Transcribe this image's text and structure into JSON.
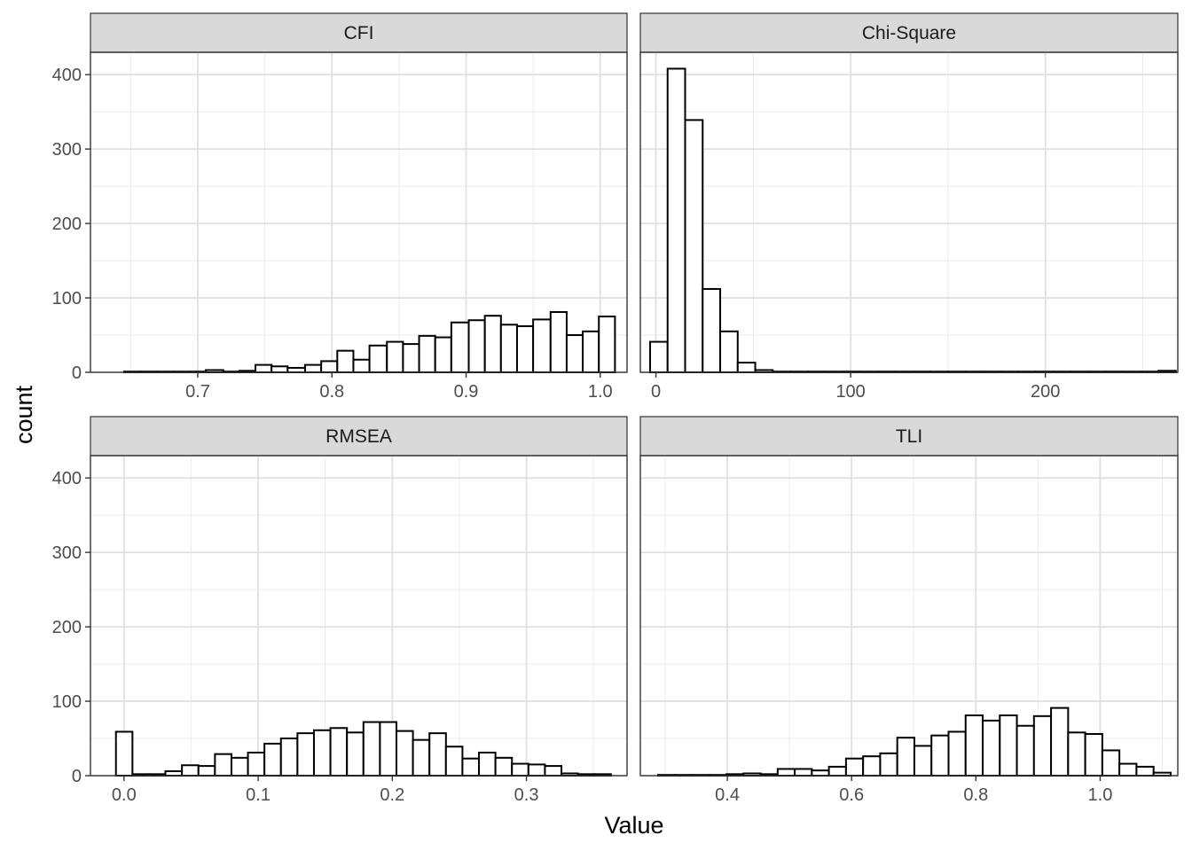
{
  "chart_data": {
    "type": "histogram-facets",
    "xlabel": "Value",
    "ylabel": "count",
    "ylim": [
      0,
      430
    ],
    "yticks": [
      0,
      100,
      200,
      300,
      400
    ],
    "panels": [
      {
        "title": "CFI",
        "xlim": [
          0.62,
          1.02
        ],
        "xticks": [
          0.7,
          0.8,
          0.9,
          1.0
        ],
        "xtick_labels": [
          "0.7",
          "0.8",
          "0.9",
          "1.0"
        ],
        "bins": [
          {
            "start": 0.645,
            "end": 0.657,
            "count": 1
          },
          {
            "start": 0.657,
            "end": 0.67,
            "count": 1
          },
          {
            "start": 0.67,
            "end": 0.682,
            "count": 1
          },
          {
            "start": 0.682,
            "end": 0.694,
            "count": 1
          },
          {
            "start": 0.694,
            "end": 0.706,
            "count": 1
          },
          {
            "start": 0.706,
            "end": 0.719,
            "count": 3
          },
          {
            "start": 0.719,
            "end": 0.731,
            "count": 1
          },
          {
            "start": 0.731,
            "end": 0.743,
            "count": 2
          },
          {
            "start": 0.743,
            "end": 0.755,
            "count": 10
          },
          {
            "start": 0.755,
            "end": 0.767,
            "count": 8
          },
          {
            "start": 0.767,
            "end": 0.78,
            "count": 6
          },
          {
            "start": 0.78,
            "end": 0.792,
            "count": 10
          },
          {
            "start": 0.792,
            "end": 0.804,
            "count": 15
          },
          {
            "start": 0.804,
            "end": 0.816,
            "count": 29
          },
          {
            "start": 0.816,
            "end": 0.828,
            "count": 17
          },
          {
            "start": 0.828,
            "end": 0.841,
            "count": 36
          },
          {
            "start": 0.841,
            "end": 0.853,
            "count": 41
          },
          {
            "start": 0.853,
            "end": 0.865,
            "count": 38
          },
          {
            "start": 0.865,
            "end": 0.877,
            "count": 49
          },
          {
            "start": 0.877,
            "end": 0.889,
            "count": 47
          },
          {
            "start": 0.889,
            "end": 0.902,
            "count": 67
          },
          {
            "start": 0.902,
            "end": 0.914,
            "count": 70
          },
          {
            "start": 0.914,
            "end": 0.926,
            "count": 76
          },
          {
            "start": 0.926,
            "end": 0.938,
            "count": 64
          },
          {
            "start": 0.938,
            "end": 0.95,
            "count": 62
          },
          {
            "start": 0.95,
            "end": 0.963,
            "count": 71
          },
          {
            "start": 0.963,
            "end": 0.975,
            "count": 81
          },
          {
            "start": 0.975,
            "end": 0.987,
            "count": 50
          },
          {
            "start": 0.987,
            "end": 0.999,
            "count": 55
          },
          {
            "start": 0.999,
            "end": 1.011,
            "count": 75
          }
        ]
      },
      {
        "title": "Chi-Square",
        "xlim": [
          -8,
          268
        ],
        "xticks": [
          0,
          100,
          200
        ],
        "xtick_labels": [
          "0",
          "100",
          "200"
        ],
        "bins": [
          {
            "start": -3,
            "end": 6,
            "count": 41
          },
          {
            "start": 6,
            "end": 15,
            "count": 408
          },
          {
            "start": 15,
            "end": 24,
            "count": 339
          },
          {
            "start": 24,
            "end": 33,
            "count": 112
          },
          {
            "start": 33,
            "end": 42,
            "count": 55
          },
          {
            "start": 42,
            "end": 51,
            "count": 13
          },
          {
            "start": 51,
            "end": 60,
            "count": 3
          },
          {
            "start": 60,
            "end": 69,
            "count": 1
          },
          {
            "start": 69,
            "end": 78,
            "count": 1
          },
          {
            "start": 78,
            "end": 87,
            "count": 1
          },
          {
            "start": 87,
            "end": 96,
            "count": 1
          },
          {
            "start": 96,
            "end": 105,
            "count": 1
          },
          {
            "start": 105,
            "end": 114,
            "count": 1
          },
          {
            "start": 114,
            "end": 123,
            "count": 1
          },
          {
            "start": 123,
            "end": 132,
            "count": 1
          },
          {
            "start": 132,
            "end": 141,
            "count": 1
          },
          {
            "start": 141,
            "end": 150,
            "count": 1
          },
          {
            "start": 150,
            "end": 159,
            "count": 1
          },
          {
            "start": 159,
            "end": 168,
            "count": 1
          },
          {
            "start": 168,
            "end": 177,
            "count": 1
          },
          {
            "start": 177,
            "end": 186,
            "count": 1
          },
          {
            "start": 186,
            "end": 195,
            "count": 1
          },
          {
            "start": 195,
            "end": 204,
            "count": 1
          },
          {
            "start": 204,
            "end": 213,
            "count": 1
          },
          {
            "start": 213,
            "end": 222,
            "count": 1
          },
          {
            "start": 222,
            "end": 231,
            "count": 1
          },
          {
            "start": 231,
            "end": 240,
            "count": 1
          },
          {
            "start": 240,
            "end": 249,
            "count": 1
          },
          {
            "start": 249,
            "end": 258,
            "count": 1
          },
          {
            "start": 258,
            "end": 267,
            "count": 2
          }
        ]
      },
      {
        "title": "RMSEA",
        "xlim": [
          -0.025,
          0.375
        ],
        "xticks": [
          0.0,
          0.1,
          0.2,
          0.3
        ],
        "xtick_labels": [
          "0.0",
          "0.1",
          "0.2",
          "0.3"
        ],
        "bins": [
          {
            "start": -0.006,
            "end": 0.0063,
            "count": 59
          },
          {
            "start": 0.0063,
            "end": 0.0186,
            "count": 2
          },
          {
            "start": 0.0186,
            "end": 0.0309,
            "count": 2
          },
          {
            "start": 0.0309,
            "end": 0.0432,
            "count": 6
          },
          {
            "start": 0.0432,
            "end": 0.0555,
            "count": 14
          },
          {
            "start": 0.0555,
            "end": 0.0678,
            "count": 13
          },
          {
            "start": 0.0678,
            "end": 0.0801,
            "count": 29
          },
          {
            "start": 0.0801,
            "end": 0.0924,
            "count": 24
          },
          {
            "start": 0.0924,
            "end": 0.1047,
            "count": 31
          },
          {
            "start": 0.1047,
            "end": 0.117,
            "count": 43
          },
          {
            "start": 0.117,
            "end": 0.1293,
            "count": 50
          },
          {
            "start": 0.1293,
            "end": 0.1416,
            "count": 57
          },
          {
            "start": 0.1416,
            "end": 0.1539,
            "count": 61
          },
          {
            "start": 0.1539,
            "end": 0.1662,
            "count": 64
          },
          {
            "start": 0.1662,
            "end": 0.1785,
            "count": 58
          },
          {
            "start": 0.1785,
            "end": 0.1908,
            "count": 72
          },
          {
            "start": 0.1908,
            "end": 0.2031,
            "count": 72
          },
          {
            "start": 0.2031,
            "end": 0.2154,
            "count": 60
          },
          {
            "start": 0.2154,
            "end": 0.2277,
            "count": 48
          },
          {
            "start": 0.2277,
            "end": 0.24,
            "count": 57
          },
          {
            "start": 0.24,
            "end": 0.2523,
            "count": 39
          },
          {
            "start": 0.2523,
            "end": 0.2646,
            "count": 23
          },
          {
            "start": 0.2646,
            "end": 0.2769,
            "count": 31
          },
          {
            "start": 0.2769,
            "end": 0.2892,
            "count": 24
          },
          {
            "start": 0.2892,
            "end": 0.3015,
            "count": 16
          },
          {
            "start": 0.3015,
            "end": 0.3138,
            "count": 15
          },
          {
            "start": 0.3138,
            "end": 0.3261,
            "count": 13
          },
          {
            "start": 0.3261,
            "end": 0.3384,
            "count": 3
          },
          {
            "start": 0.3384,
            "end": 0.3507,
            "count": 2
          },
          {
            "start": 0.3507,
            "end": 0.363,
            "count": 2
          }
        ]
      },
      {
        "title": "TLI",
        "xlim": [
          0.26,
          1.125
        ],
        "xticks": [
          0.4,
          0.6,
          0.8,
          1.0
        ],
        "xtick_labels": [
          "0.4",
          "0.6",
          "0.8",
          "1.0"
        ],
        "bins": [
          {
            "start": 0.2885,
            "end": 0.316,
            "count": 1
          },
          {
            "start": 0.316,
            "end": 0.3435,
            "count": 1
          },
          {
            "start": 0.3435,
            "end": 0.371,
            "count": 1
          },
          {
            "start": 0.371,
            "end": 0.3985,
            "count": 1
          },
          {
            "start": 0.3985,
            "end": 0.426,
            "count": 2
          },
          {
            "start": 0.426,
            "end": 0.4535,
            "count": 3
          },
          {
            "start": 0.4535,
            "end": 0.481,
            "count": 2
          },
          {
            "start": 0.481,
            "end": 0.5085,
            "count": 9
          },
          {
            "start": 0.5085,
            "end": 0.536,
            "count": 9
          },
          {
            "start": 0.536,
            "end": 0.5635,
            "count": 7
          },
          {
            "start": 0.5635,
            "end": 0.591,
            "count": 12
          },
          {
            "start": 0.591,
            "end": 0.6185,
            "count": 23
          },
          {
            "start": 0.6185,
            "end": 0.646,
            "count": 26
          },
          {
            "start": 0.646,
            "end": 0.6735,
            "count": 30
          },
          {
            "start": 0.6735,
            "end": 0.701,
            "count": 51
          },
          {
            "start": 0.701,
            "end": 0.7285,
            "count": 40
          },
          {
            "start": 0.7285,
            "end": 0.756,
            "count": 54
          },
          {
            "start": 0.756,
            "end": 0.7835,
            "count": 59
          },
          {
            "start": 0.7835,
            "end": 0.811,
            "count": 81
          },
          {
            "start": 0.811,
            "end": 0.8385,
            "count": 74
          },
          {
            "start": 0.8385,
            "end": 0.866,
            "count": 81
          },
          {
            "start": 0.866,
            "end": 0.8935,
            "count": 67
          },
          {
            "start": 0.8935,
            "end": 0.921,
            "count": 80
          },
          {
            "start": 0.921,
            "end": 0.9485,
            "count": 91
          },
          {
            "start": 0.9485,
            "end": 0.976,
            "count": 58
          },
          {
            "start": 0.976,
            "end": 1.0035,
            "count": 56
          },
          {
            "start": 1.0035,
            "end": 1.031,
            "count": 34
          },
          {
            "start": 1.031,
            "end": 1.0585,
            "count": 16
          },
          {
            "start": 1.0585,
            "end": 1.086,
            "count": 12
          },
          {
            "start": 1.086,
            "end": 1.1135,
            "count": 4
          }
        ]
      }
    ]
  }
}
